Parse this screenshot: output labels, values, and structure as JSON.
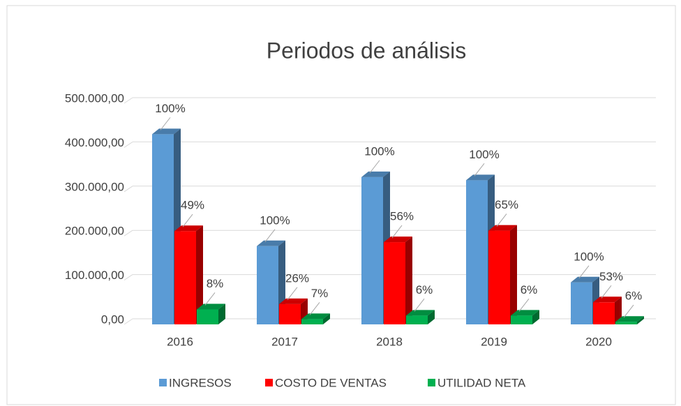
{
  "chart_data": {
    "type": "bar3d",
    "title": "Periodos de análisis",
    "categories": [
      "2016",
      "2017",
      "2018",
      "2019",
      "2020"
    ],
    "series": [
      {
        "name": "INGRESOS",
        "color": "#5b9bd5",
        "values": [
          430000,
          177000,
          333000,
          326000,
          95000
        ],
        "labels": [
          "100%",
          "100%",
          "100%",
          "100%",
          "100%"
        ]
      },
      {
        "name": "COSTO DE VENTAS",
        "color": "#ff0000",
        "values": [
          211000,
          46000,
          186000,
          212000,
          50000
        ],
        "labels": [
          "49%",
          "26%",
          "56%",
          "65%",
          "53%"
        ]
      },
      {
        "name": "UTILIDAD NETA",
        "color": "#00b050",
        "values": [
          34000,
          12000,
          20000,
          20000,
          6000
        ],
        "labels": [
          "8%",
          "7%",
          "6%",
          "6%",
          "6%"
        ]
      }
    ],
    "ylim": [
      0,
      500000
    ],
    "yticks": [
      {
        "value": 0,
        "label": "0,00"
      },
      {
        "value": 100000,
        "label": "100.000,00"
      },
      {
        "value": 200000,
        "label": "200.000,00"
      },
      {
        "value": 300000,
        "label": "300.000,00"
      },
      {
        "value": 400000,
        "label": "400.000,00"
      },
      {
        "value": 500000,
        "label": "500.000,00"
      }
    ],
    "grid": true,
    "legend": "bottom"
  }
}
